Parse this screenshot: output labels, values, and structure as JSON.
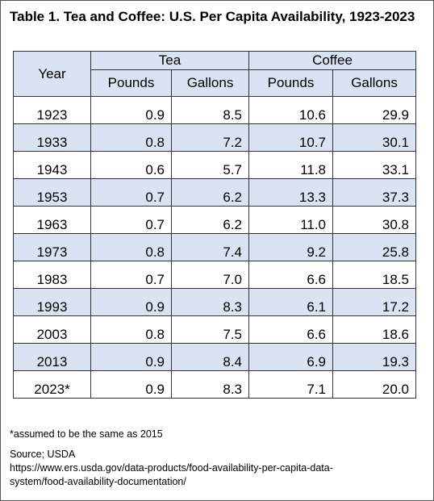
{
  "title": "Table 1. Tea and Coffee: U.S. Per Capita Availability, 1923-2023",
  "table": {
    "year_header": "Year",
    "groups": [
      "Tea",
      "Coffee"
    ],
    "subheaders": [
      "Pounds",
      "Gallons",
      "Pounds",
      "Gallons"
    ],
    "rows": [
      [
        "1923",
        "0.9",
        "8.5",
        "10.6",
        "29.9"
      ],
      [
        "1933",
        "0.8",
        "7.2",
        "10.7",
        "30.1"
      ],
      [
        "1943",
        "0.6",
        "5.7",
        "11.8",
        "33.1"
      ],
      [
        "1953",
        "0.7",
        "6.2",
        "13.3",
        "37.3"
      ],
      [
        "1963",
        "0.7",
        "6.2",
        "11.0",
        "30.8"
      ],
      [
        "1973",
        "0.8",
        "7.4",
        "9.2",
        "25.8"
      ],
      [
        "1983",
        "0.7",
        "7.0",
        "6.6",
        "18.5"
      ],
      [
        "1993",
        "0.9",
        "8.3",
        "6.1",
        "17.2"
      ],
      [
        "2003",
        "0.8",
        "7.5",
        "6.6",
        "18.6"
      ],
      [
        "2013",
        "0.9",
        "8.4",
        "6.9",
        "19.3"
      ],
      [
        "2023*",
        "0.9",
        "8.3",
        "7.1",
        "20.0"
      ]
    ]
  },
  "footnote": "*assumed to be the same as 2015",
  "source": {
    "label": "Source; USDA",
    "url_line1": "https://www.ers.usda.gov/data-products/food-availability-per-capita-data-",
    "url_line2": "system/food-availability-documentation/"
  },
  "colors": {
    "shade": "#dae3f3",
    "border": "#333333"
  }
}
